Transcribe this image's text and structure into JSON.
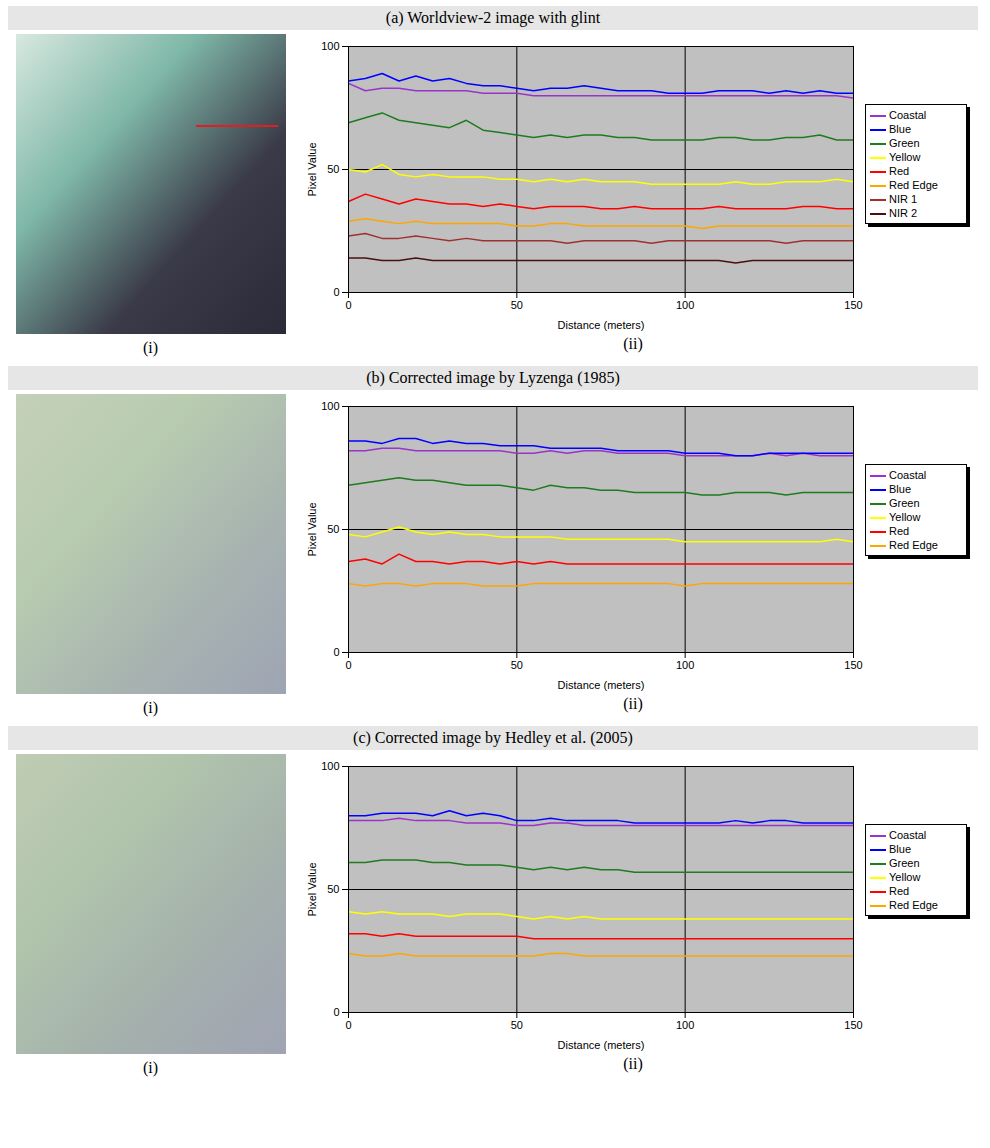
{
  "chart_data": [
    {
      "type": "line",
      "title": "(a) Worldview-2 image with glint",
      "annotations": [
        "(i)",
        "(ii)"
      ],
      "x_label": "Distance (meters)",
      "y_label": "Pixel Value",
      "xlim": [
        0,
        150
      ],
      "xticks": [
        0,
        50,
        100,
        150
      ],
      "ylim": [
        0,
        100
      ],
      "yticks": [
        0,
        50,
        100
      ],
      "grid": true,
      "legend": "right",
      "x": [
        0,
        5,
        10,
        15,
        20,
        25,
        30,
        35,
        40,
        45,
        50,
        55,
        60,
        65,
        70,
        75,
        80,
        85,
        90,
        95,
        100,
        105,
        110,
        115,
        120,
        125,
        130,
        135,
        140,
        145,
        150
      ],
      "series": [
        {
          "name": "Coastal",
          "color": "#9933cc",
          "values": [
            85,
            82,
            83,
            83,
            82,
            82,
            82,
            82,
            81,
            81,
            81,
            80,
            80,
            80,
            80,
            80,
            80,
            80,
            80,
            80,
            80,
            80,
            80,
            80,
            80,
            80,
            80,
            80,
            80,
            80,
            79
          ]
        },
        {
          "name": "Blue",
          "color": "#0000ff",
          "values": [
            86,
            87,
            89,
            86,
            88,
            86,
            87,
            85,
            84,
            84,
            83,
            82,
            83,
            83,
            84,
            83,
            82,
            82,
            82,
            81,
            81,
            81,
            82,
            82,
            82,
            81,
            82,
            81,
            82,
            81,
            81
          ]
        },
        {
          "name": "Green",
          "color": "#1e7b1e",
          "values": [
            69,
            71,
            73,
            70,
            69,
            68,
            67,
            70,
            66,
            65,
            64,
            63,
            64,
            63,
            64,
            64,
            63,
            63,
            62,
            62,
            62,
            62,
            63,
            63,
            62,
            62,
            63,
            63,
            64,
            62,
            62
          ]
        },
        {
          "name": "Yellow",
          "color": "#ffff00",
          "values": [
            50,
            49,
            52,
            48,
            47,
            48,
            47,
            47,
            47,
            46,
            46,
            45,
            46,
            45,
            46,
            45,
            45,
            45,
            44,
            44,
            44,
            44,
            44,
            45,
            44,
            44,
            45,
            45,
            45,
            46,
            45
          ]
        },
        {
          "name": "Red",
          "color": "#ff0000",
          "values": [
            37,
            40,
            38,
            36,
            38,
            37,
            36,
            36,
            35,
            36,
            35,
            34,
            35,
            35,
            35,
            34,
            34,
            35,
            34,
            34,
            34,
            34,
            35,
            34,
            34,
            34,
            34,
            35,
            35,
            34,
            34
          ]
        },
        {
          "name": "Red Edge",
          "color": "#ffa500",
          "values": [
            29,
            30,
            29,
            28,
            29,
            28,
            28,
            28,
            28,
            28,
            27,
            27,
            28,
            28,
            27,
            27,
            27,
            27,
            27,
            27,
            27,
            26,
            27,
            27,
            27,
            27,
            27,
            27,
            27,
            27,
            27
          ]
        },
        {
          "name": "NIR 1",
          "color": "#a03030",
          "values": [
            23,
            24,
            22,
            22,
            23,
            22,
            21,
            22,
            21,
            21,
            21,
            21,
            21,
            20,
            21,
            21,
            21,
            21,
            20,
            21,
            21,
            21,
            21,
            21,
            21,
            21,
            20,
            21,
            21,
            21,
            21
          ]
        },
        {
          "name": "NIR 2",
          "color": "#4a1010",
          "values": [
            14,
            14,
            13,
            13,
            14,
            13,
            13,
            13,
            13,
            13,
            13,
            13,
            13,
            13,
            13,
            13,
            13,
            13,
            13,
            13,
            13,
            13,
            13,
            12,
            13,
            13,
            13,
            13,
            13,
            13,
            13
          ]
        }
      ]
    },
    {
      "type": "line",
      "title": "(b) Corrected image by Lyzenga (1985)",
      "annotations": [
        "(i)",
        "(ii)"
      ],
      "x_label": "Distance (meters)",
      "y_label": "Pixel Value",
      "xlim": [
        0,
        150
      ],
      "xticks": [
        0,
        50,
        100,
        150
      ],
      "ylim": [
        0,
        100
      ],
      "yticks": [
        0,
        50,
        100
      ],
      "grid": true,
      "legend": "right",
      "x": [
        0,
        5,
        10,
        15,
        20,
        25,
        30,
        35,
        40,
        45,
        50,
        55,
        60,
        65,
        70,
        75,
        80,
        85,
        90,
        95,
        100,
        105,
        110,
        115,
        120,
        125,
        130,
        135,
        140,
        145,
        150
      ],
      "series": [
        {
          "name": "Coastal",
          "color": "#9933cc",
          "values": [
            82,
            82,
            83,
            83,
            82,
            82,
            82,
            82,
            82,
            82,
            81,
            81,
            82,
            81,
            82,
            82,
            81,
            81,
            81,
            81,
            80,
            80,
            80,
            80,
            80,
            81,
            80,
            81,
            80,
            80,
            80
          ]
        },
        {
          "name": "Blue",
          "color": "#0000ff",
          "values": [
            86,
            86,
            85,
            87,
            87,
            85,
            86,
            85,
            85,
            84,
            84,
            84,
            83,
            83,
            83,
            83,
            82,
            82,
            82,
            82,
            81,
            81,
            81,
            80,
            80,
            81,
            81,
            81,
            81,
            81,
            81
          ]
        },
        {
          "name": "Green",
          "color": "#1e7b1e",
          "values": [
            68,
            69,
            70,
            71,
            70,
            70,
            69,
            68,
            68,
            68,
            67,
            66,
            68,
            67,
            67,
            66,
            66,
            65,
            65,
            65,
            65,
            64,
            64,
            65,
            65,
            65,
            64,
            65,
            65,
            65,
            65
          ]
        },
        {
          "name": "Yellow",
          "color": "#ffff00",
          "values": [
            48,
            47,
            49,
            51,
            49,
            48,
            49,
            48,
            48,
            47,
            47,
            47,
            47,
            46,
            46,
            46,
            46,
            46,
            46,
            46,
            45,
            45,
            45,
            45,
            45,
            45,
            45,
            45,
            45,
            46,
            45
          ]
        },
        {
          "name": "Red",
          "color": "#ff0000",
          "values": [
            37,
            38,
            36,
            40,
            37,
            37,
            36,
            37,
            37,
            36,
            37,
            36,
            37,
            36,
            36,
            36,
            36,
            36,
            36,
            36,
            36,
            36,
            36,
            36,
            36,
            36,
            36,
            36,
            36,
            36,
            36
          ]
        },
        {
          "name": "Red Edge",
          "color": "#ffa500",
          "values": [
            28,
            27,
            28,
            28,
            27,
            28,
            28,
            28,
            27,
            27,
            27,
            28,
            28,
            28,
            28,
            28,
            28,
            28,
            28,
            28,
            27,
            28,
            28,
            28,
            28,
            28,
            28,
            28,
            28,
            28,
            28
          ]
        }
      ]
    },
    {
      "type": "line",
      "title": "(c) Corrected image by Hedley et al. (2005)",
      "annotations": [
        "(i)",
        "(ii)"
      ],
      "x_label": "Distance (meters)",
      "y_label": "Pixel Value",
      "xlim": [
        0,
        150
      ],
      "xticks": [
        0,
        50,
        100,
        150
      ],
      "ylim": [
        0,
        100
      ],
      "yticks": [
        0,
        50,
        100
      ],
      "grid": true,
      "legend": "right",
      "x": [
        0,
        5,
        10,
        15,
        20,
        25,
        30,
        35,
        40,
        45,
        50,
        55,
        60,
        65,
        70,
        75,
        80,
        85,
        90,
        95,
        100,
        105,
        110,
        115,
        120,
        125,
        130,
        135,
        140,
        145,
        150
      ],
      "series": [
        {
          "name": "Coastal",
          "color": "#9933cc",
          "values": [
            78,
            78,
            78,
            79,
            78,
            78,
            78,
            77,
            77,
            77,
            76,
            76,
            77,
            77,
            76,
            76,
            76,
            76,
            76,
            76,
            76,
            76,
            76,
            76,
            76,
            76,
            76,
            76,
            76,
            76,
            76
          ]
        },
        {
          "name": "Blue",
          "color": "#0000ff",
          "values": [
            80,
            80,
            81,
            81,
            81,
            80,
            82,
            80,
            81,
            80,
            78,
            78,
            79,
            78,
            78,
            78,
            78,
            77,
            77,
            77,
            77,
            77,
            77,
            78,
            77,
            78,
            78,
            77,
            77,
            77,
            77
          ]
        },
        {
          "name": "Green",
          "color": "#1e7b1e",
          "values": [
            61,
            61,
            62,
            62,
            62,
            61,
            61,
            60,
            60,
            60,
            59,
            58,
            59,
            58,
            59,
            58,
            58,
            57,
            57,
            57,
            57,
            57,
            57,
            57,
            57,
            57,
            57,
            57,
            57,
            57,
            57
          ]
        },
        {
          "name": "Yellow",
          "color": "#ffff00",
          "values": [
            41,
            40,
            41,
            40,
            40,
            40,
            39,
            40,
            40,
            40,
            39,
            38,
            39,
            38,
            39,
            38,
            38,
            38,
            38,
            38,
            38,
            38,
            38,
            38,
            38,
            38,
            38,
            38,
            38,
            38,
            38
          ]
        },
        {
          "name": "Red",
          "color": "#ff0000",
          "values": [
            32,
            32,
            31,
            32,
            31,
            31,
            31,
            31,
            31,
            31,
            31,
            30,
            30,
            30,
            30,
            30,
            30,
            30,
            30,
            30,
            30,
            30,
            30,
            30,
            30,
            30,
            30,
            30,
            30,
            30,
            30
          ]
        },
        {
          "name": "Red Edge",
          "color": "#ffa500",
          "values": [
            24,
            23,
            23,
            24,
            23,
            23,
            23,
            23,
            23,
            23,
            23,
            23,
            24,
            24,
            23,
            23,
            23,
            23,
            23,
            23,
            23,
            23,
            23,
            23,
            23,
            23,
            23,
            23,
            23,
            23,
            23
          ]
        }
      ]
    }
  ]
}
